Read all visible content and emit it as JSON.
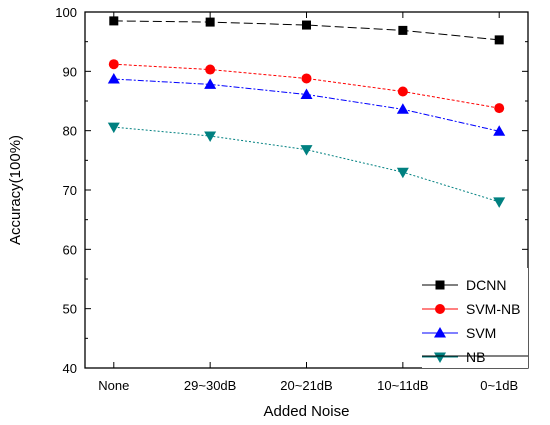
{
  "chart_data": {
    "type": "line",
    "title": "",
    "xlabel": "Added Noise",
    "ylabel": "Accuracy(100%)",
    "categories": [
      "None",
      "29~30dB",
      "20~21dB",
      "10~11dB",
      "0~1dB"
    ],
    "ylim": [
      40,
      100
    ],
    "yticks": [
      40,
      50,
      60,
      70,
      80,
      90,
      100
    ],
    "grid": false,
    "legend_position": "bottom-right",
    "series": [
      {
        "name": "DCNN",
        "values": [
          98.5,
          98.3,
          97.8,
          96.9,
          95.3
        ],
        "color": "#000000",
        "marker": "square",
        "dash": "9,4"
      },
      {
        "name": "SVM-NB",
        "values": [
          91.2,
          90.3,
          88.8,
          86.6,
          83.8
        ],
        "color": "#ff0000",
        "marker": "circle",
        "dash": "3,2"
      },
      {
        "name": "SVM",
        "values": [
          88.7,
          87.8,
          86.1,
          83.6,
          79.9
        ],
        "color": "#0000ff",
        "marker": "triangle-up",
        "dash": "6,2,2,2"
      },
      {
        "name": "NB",
        "values": [
          80.6,
          79.1,
          76.8,
          73.0,
          68.0
        ],
        "color": "#008080",
        "marker": "triangle-down",
        "dash": "2,2"
      }
    ]
  }
}
